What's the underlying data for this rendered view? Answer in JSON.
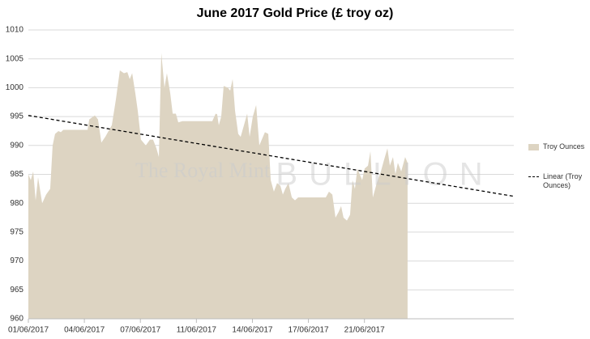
{
  "chart_data": {
    "type": "area",
    "title": "June 2017 Gold Price (£ troy oz)",
    "watermark": [
      "The Royal Mint",
      "BULLION"
    ],
    "xlim": [
      0,
      26
    ],
    "xticks": [
      {
        "value": 0,
        "label": "01/06/2017"
      },
      {
        "value": 3,
        "label": "04/06/2017"
      },
      {
        "value": 6,
        "label": "07/06/2017"
      },
      {
        "value": 9,
        "label": "11/06/2017"
      },
      {
        "value": 12,
        "label": "14/06/2017"
      },
      {
        "value": 15,
        "label": "17/06/2017"
      },
      {
        "value": 18,
        "label": "21/06/2017"
      }
    ],
    "ylim": [
      960,
      1010
    ],
    "yticks": [
      960,
      965,
      970,
      975,
      980,
      985,
      990,
      995,
      1000,
      1005,
      1010
    ],
    "grid": true,
    "legend": "right",
    "series": [
      {
        "name": "Troy Ounces",
        "color": "#ddd4c2",
        "style": "area",
        "x": [
          0,
          0.13,
          0.26,
          0.39,
          0.52,
          0.74,
          0.95,
          1.17,
          1.3,
          1.43,
          1.61,
          1.74,
          1.87,
          2.17,
          2.82,
          3.17,
          3.26,
          3.56,
          3.73,
          3.91,
          4.12,
          4.47,
          4.69,
          4.9,
          5.12,
          5.3,
          5.43,
          5.56,
          5.73,
          5.86,
          6.03,
          6.29,
          6.51,
          6.68,
          6.86,
          6.99,
          7.12,
          7.29,
          7.42,
          7.6,
          7.73,
          7.9,
          8.03,
          8.25,
          8.9,
          9.55,
          9.85,
          10.03,
          10.11,
          10.2,
          10.33,
          10.46,
          10.68,
          10.81,
          10.94,
          11.07,
          11.24,
          11.37,
          11.59,
          11.72,
          11.85,
          12.02,
          12.2,
          12.37,
          12.5,
          12.67,
          12.85,
          12.98,
          13.15,
          13.32,
          13.5,
          13.63,
          13.76,
          13.93,
          14.11,
          14.28,
          14.45,
          14.97,
          15.63,
          15.93,
          16.1,
          16.28,
          16.45,
          16.62,
          16.75,
          16.88,
          17.06,
          17.23,
          17.36,
          17.49,
          17.62,
          17.75,
          17.88,
          18.01,
          18.19,
          18.32,
          18.45,
          18.66,
          18.88,
          19.05,
          19.23,
          19.36,
          19.53,
          19.66,
          19.79,
          19.97,
          20.18,
          20.31
        ],
        "values": [
          985,
          984,
          985.5,
          980.5,
          984.5,
          980,
          981.5,
          982.5,
          990,
          992,
          992.5,
          992.3,
          992.7,
          992.7,
          992.7,
          992.7,
          994.5,
          995.2,
          994.5,
          990.5,
          991.5,
          993.5,
          998,
          1003,
          1002.5,
          1002.7,
          1001.5,
          1002.5,
          999,
          996,
          991,
          990,
          991,
          991,
          989.5,
          988,
          1006,
          1000,
          1002.5,
          999,
          995.5,
          995.5,
          994,
          994.2,
          994.2,
          994.2,
          994.2,
          995.5,
          995.4,
          993.5,
          995,
          1000.3,
          1000,
          999.5,
          1001.5,
          996,
          992,
          991.5,
          994,
          995.5,
          991.5,
          995,
          997,
          990,
          991,
          992.3,
          992,
          984,
          982,
          983.5,
          983,
          981.5,
          982.5,
          983.5,
          981,
          980.5,
          981,
          981,
          981,
          981,
          982,
          981.5,
          977.5,
          978.5,
          979.5,
          977.5,
          977,
          978,
          984,
          982.5,
          986,
          985,
          984,
          986,
          986.5,
          989,
          981,
          983.5,
          985.5,
          987.5,
          989.5,
          986.5,
          988,
          985,
          987,
          985.5,
          988,
          987
        ]
      },
      {
        "name": "Linear (Troy Ounces)",
        "color": "#000000",
        "style": "dashed",
        "x": [
          0,
          26
        ],
        "values": [
          995.2,
          981.2
        ]
      }
    ]
  }
}
